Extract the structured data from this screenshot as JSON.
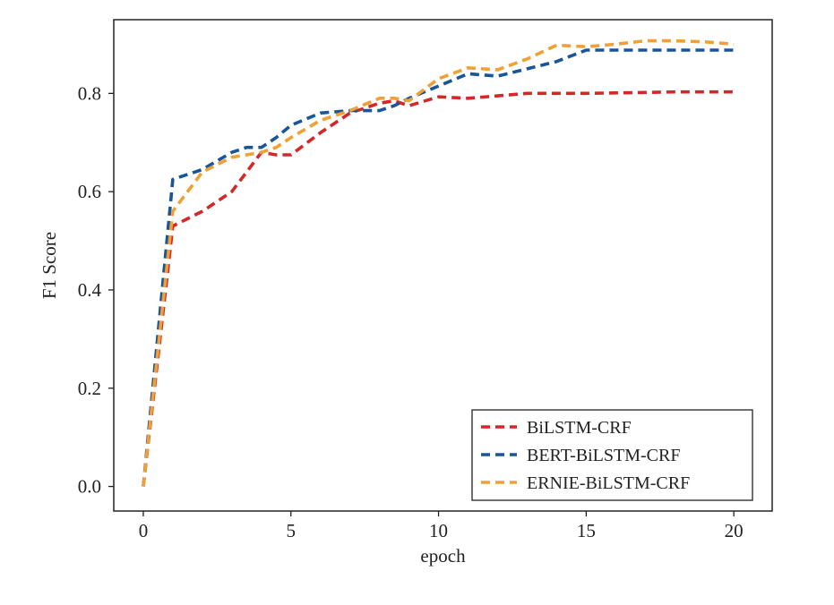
{
  "chart_data": {
    "type": "line",
    "title": "",
    "xlabel": "epoch",
    "ylabel": "F1 Score",
    "xlim": [
      -1,
      21.3
    ],
    "ylim": [
      -0.05,
      0.95
    ],
    "xticks": [
      0,
      5,
      10,
      15,
      20
    ],
    "yticks": [
      0.0,
      0.2,
      0.4,
      0.6,
      0.8
    ],
    "xtick_labels": [
      "0",
      "5",
      "10",
      "15",
      "20"
    ],
    "ytick_labels": [
      "0.0",
      "0.2",
      "0.4",
      "0.6",
      "0.8"
    ],
    "grid": false,
    "legend_position": "bottom-right",
    "line_style": "dashed",
    "x": [
      0,
      1,
      2,
      3,
      3.5,
      4,
      4.5,
      5,
      6,
      7,
      8,
      8.5,
      9,
      10,
      11,
      12,
      13,
      14,
      15,
      16,
      17,
      18,
      19,
      20
    ],
    "series": [
      {
        "name": "BiLSTM-CRF",
        "color": "#d62728",
        "values": [
          0.0,
          0.53,
          0.56,
          0.6,
          0.64,
          0.68,
          0.675,
          0.675,
          0.72,
          0.76,
          0.78,
          0.785,
          0.775,
          0.793,
          0.79,
          0.795,
          0.8,
          0.8,
          0.8,
          0.801,
          0.802,
          0.803,
          0.803,
          0.803
        ]
      },
      {
        "name": "BERT-BiLSTM-CRF",
        "color": "#1a5599",
        "values": [
          0.0,
          0.625,
          0.645,
          0.68,
          0.69,
          0.69,
          0.71,
          0.735,
          0.76,
          0.765,
          0.765,
          0.775,
          0.79,
          0.815,
          0.84,
          0.835,
          0.85,
          0.865,
          0.888,
          0.888,
          0.888,
          0.888,
          0.888,
          0.888
        ]
      },
      {
        "name": "ERNIE-BiLSTM-CRF",
        "color": "#f0a035",
        "values": [
          0.0,
          0.56,
          0.64,
          0.67,
          0.675,
          0.68,
          0.69,
          0.71,
          0.745,
          0.765,
          0.79,
          0.79,
          0.785,
          0.83,
          0.852,
          0.848,
          0.87,
          0.898,
          0.895,
          0.9,
          0.907,
          0.907,
          0.905,
          0.9
        ]
      }
    ]
  }
}
